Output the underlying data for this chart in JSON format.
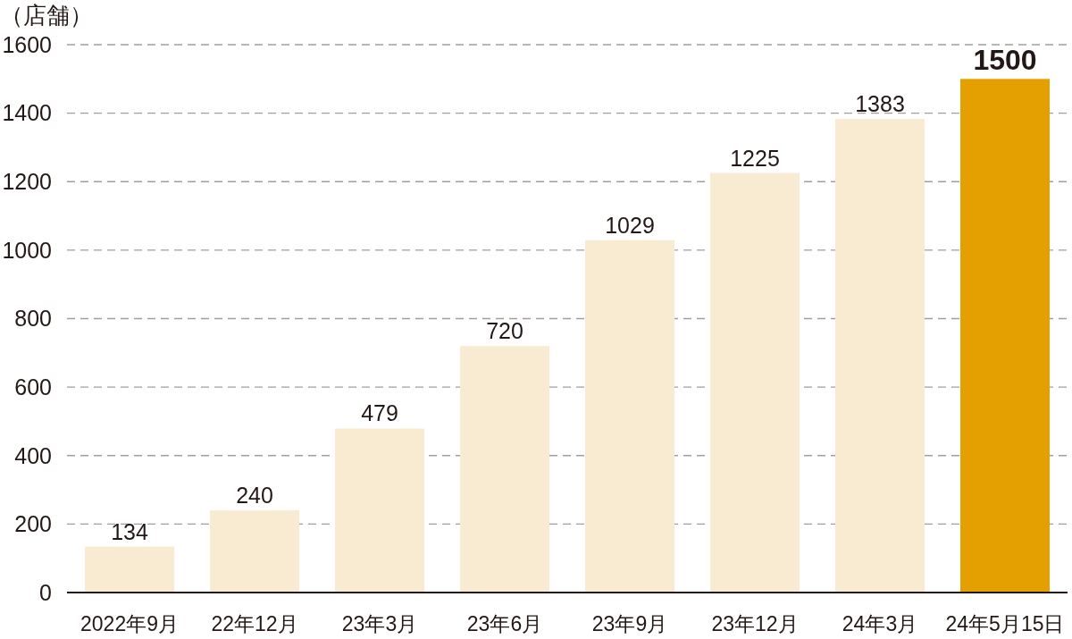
{
  "chart_data": {
    "type": "bar",
    "ylabel": "（店舗）",
    "categories": [
      "2022年9月",
      "22年12月",
      "23年3月",
      "23年6月",
      "23年9月",
      "23年12月",
      "24年3月",
      "24年5月15日"
    ],
    "values": [
      134,
      240,
      479,
      720,
      1029,
      1225,
      1383,
      1500
    ],
    "colors": [
      "#f9ebd1",
      "#f9ebd1",
      "#f9ebd1",
      "#f9ebd1",
      "#f9ebd1",
      "#f9ebd1",
      "#f9ebd1",
      "#e4a000"
    ],
    "ylim": [
      0,
      1600
    ],
    "yticks": [
      0,
      200,
      400,
      600,
      800,
      1000,
      1200,
      1400,
      1600
    ],
    "grid": "y",
    "data_labels": true
  }
}
